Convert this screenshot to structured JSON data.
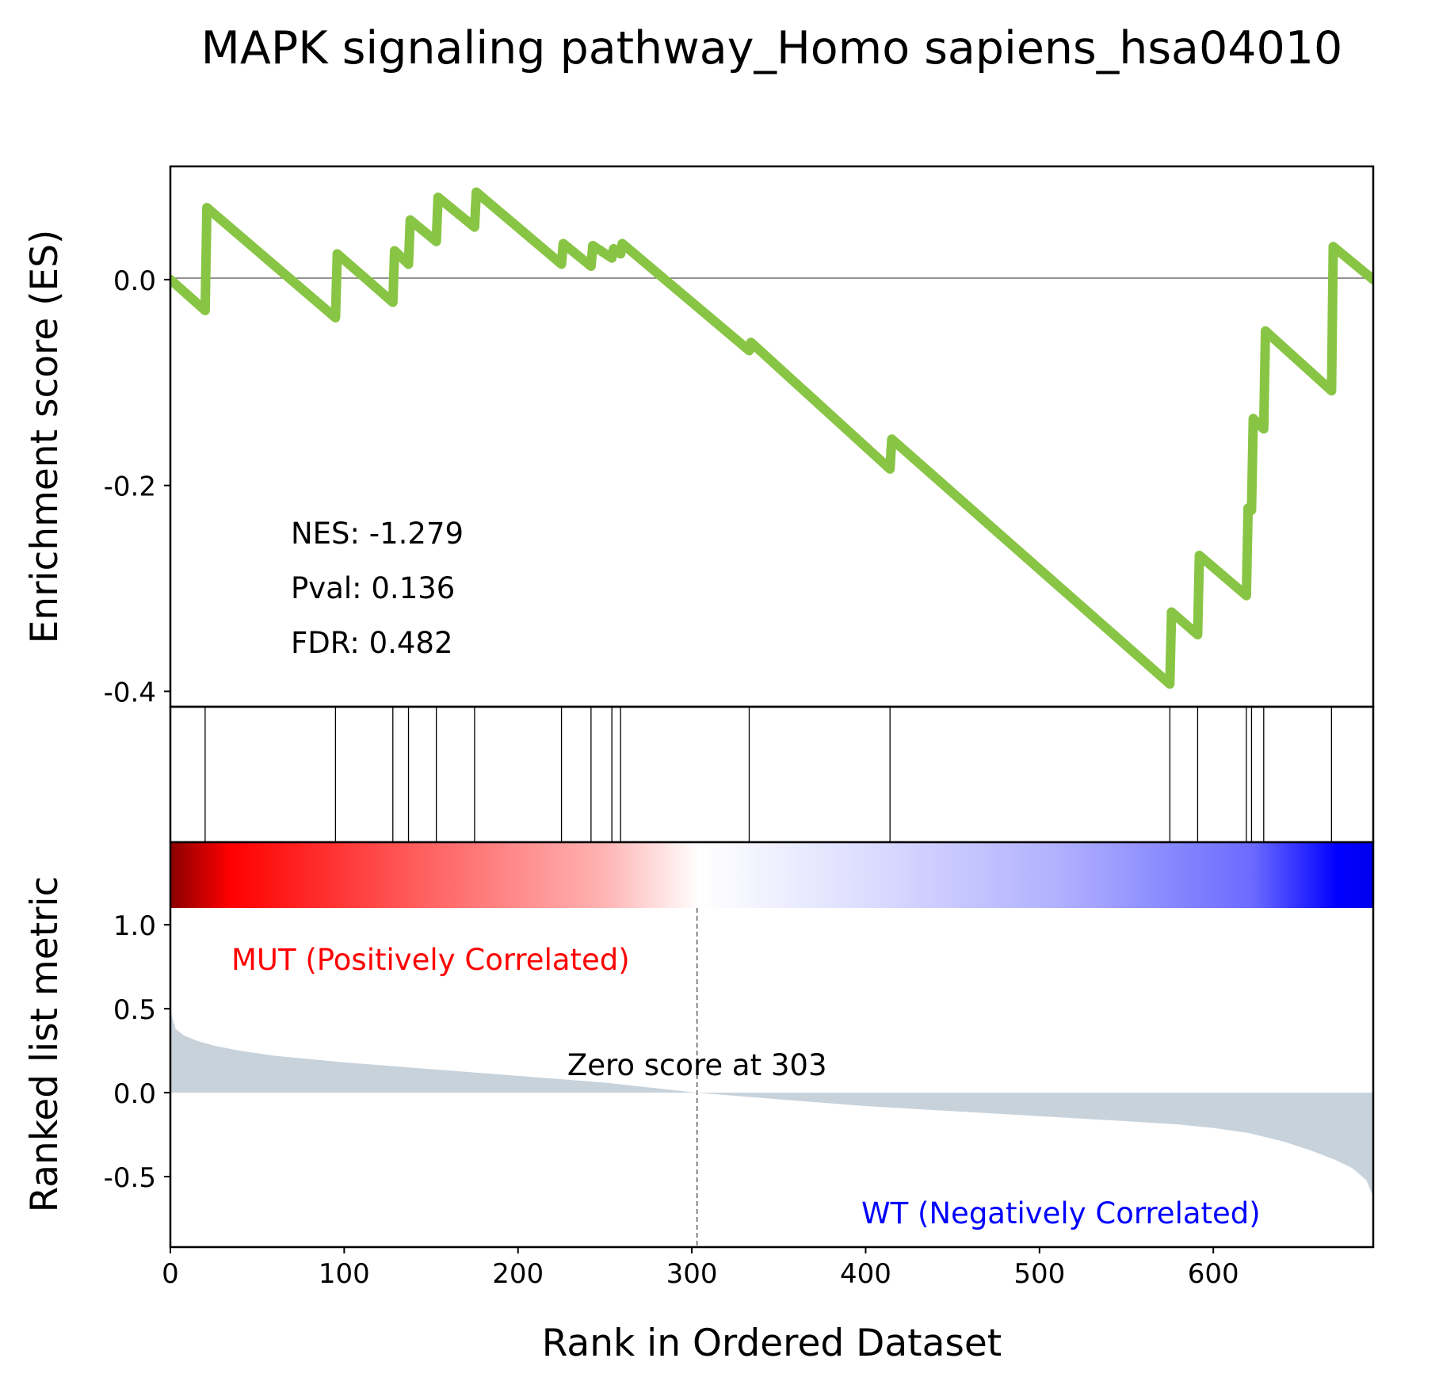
{
  "chart_data": {
    "type": "line",
    "title": "MAPK signaling pathway_Homo sapiens_hsa04010",
    "xlabel": "Rank in Ordered Dataset",
    "xlim": [
      0,
      692
    ],
    "x_ticks": [
      "0",
      "100",
      "200",
      "300",
      "400",
      "500",
      "600"
    ],
    "es_panel": {
      "ylabel": "Enrichment score (ES)",
      "ylim": [
        -0.415,
        0.11
      ],
      "y_ticks": [
        "0.0",
        "-0.2",
        "-0.4"
      ],
      "line_color": "#88c544",
      "zero_line": true,
      "x": [
        0,
        20,
        21,
        95,
        96,
        128,
        129,
        137,
        138,
        153,
        154,
        175,
        176,
        225,
        226,
        242,
        243,
        254,
        255,
        259,
        260,
        333,
        334,
        414,
        415,
        575,
        576,
        591,
        592,
        619,
        620,
        622,
        623,
        629,
        630,
        668,
        669,
        692
      ],
      "y": [
        0.0,
        -0.03,
        0.07,
        -0.037,
        0.025,
        -0.022,
        0.028,
        0.015,
        0.058,
        0.037,
        0.08,
        0.051,
        0.085,
        0.015,
        0.035,
        0.013,
        0.033,
        0.021,
        0.03,
        0.025,
        0.035,
        -0.069,
        -0.061,
        -0.184,
        -0.155,
        -0.393,
        -0.323,
        -0.345,
        -0.268,
        -0.307,
        -0.222,
        -0.224,
        -0.135,
        -0.145,
        -0.05,
        -0.108,
        0.032,
        0.0
      ],
      "annotations": [
        "NES: -1.279",
        "Pval: 0.136",
        "FDR: 0.482"
      ]
    },
    "hit_positions": [
      20,
      95,
      128,
      137,
      153,
      175,
      225,
      242,
      254,
      259,
      333,
      414,
      575,
      591,
      619,
      622,
      629,
      668
    ],
    "ranked_panel": {
      "ylabel": "Ranked list metric",
      "ylim": [
        -0.92,
        1.1
      ],
      "y_ticks": [
        "1.0",
        "0.5",
        "0.0",
        "-0.5"
      ],
      "fill_color": "#c8d2db",
      "metric_x": [
        0,
        1,
        3,
        8,
        15,
        25,
        40,
        60,
        100,
        150,
        200,
        250,
        303,
        350,
        400,
        450,
        500,
        550,
        580,
        600,
        620,
        640,
        655,
        670,
        680,
        688,
        692
      ],
      "metric_y": [
        0.5,
        0.45,
        0.38,
        0.34,
        0.31,
        0.28,
        0.25,
        0.22,
        0.18,
        0.14,
        0.1,
        0.06,
        0.0,
        -0.04,
        -0.08,
        -0.11,
        -0.14,
        -0.17,
        -0.19,
        -0.21,
        -0.24,
        -0.29,
        -0.34,
        -0.4,
        -0.45,
        -0.52,
        -0.62
      ],
      "zero_score_at": 303,
      "zero_score_label": "Zero score at 303",
      "pos_label": "MUT (Positively Correlated)",
      "pos_color": "#ff0000",
      "neg_label": "WT (Negatively Correlated)",
      "neg_color": "#0000ff"
    }
  }
}
